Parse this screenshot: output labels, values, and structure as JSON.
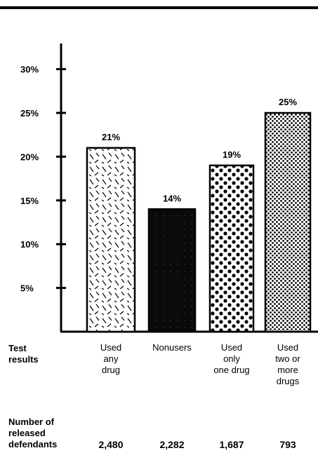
{
  "chart_data": {
    "type": "bar",
    "categories": [
      [
        "Used",
        "any",
        "drug"
      ],
      [
        "Nonusers"
      ],
      [
        "Used",
        "only",
        "one drug"
      ],
      [
        "Used",
        "two or",
        "more",
        "drugs"
      ]
    ],
    "values": [
      21,
      14,
      19,
      25
    ],
    "value_labels": [
      "21%",
      "14%",
      "19%",
      "25%"
    ],
    "fill_patterns": [
      "dashes",
      "solid",
      "large-dots",
      "fine-dots"
    ],
    "ylim": [
      0,
      32
    ],
    "yticks": [
      5,
      10,
      15,
      20,
      25,
      30
    ],
    "ytick_labels": [
      "5%",
      "10%",
      "15%",
      "20%",
      "25%",
      "30%"
    ],
    "grid": false,
    "row_header": [
      "Test",
      "results"
    ]
  },
  "footer": {
    "header_lines": [
      "Number of",
      "released",
      "defendants"
    ],
    "counts": [
      "2,480",
      "2,282",
      "1,687",
      "793"
    ]
  }
}
